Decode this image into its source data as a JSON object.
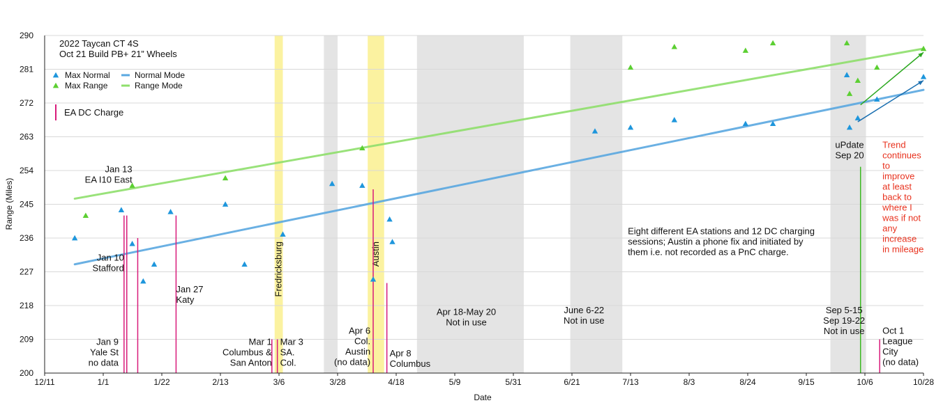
{
  "chart_data": {
    "type": "scatter",
    "title": "",
    "xlabel": "Date",
    "ylabel": "Range (Miles)",
    "x_tick_labels": [
      "12/11",
      "1/1",
      "1/22",
      "2/13",
      "3/6",
      "3/28",
      "4/18",
      "5/9",
      "5/31",
      "6/21",
      "7/13",
      "8/3",
      "8/24",
      "9/15",
      "10/6",
      "10/28"
    ],
    "y_ticks": [
      200,
      209,
      218,
      227,
      236,
      245,
      254,
      263,
      272,
      281,
      290
    ],
    "xlim": [
      "2021-12-11",
      "2022-10-28"
    ],
    "ylim": [
      200,
      290
    ],
    "grid": "horizontal",
    "legend_placement": "top-left",
    "title_lines": [
      "2022 Taycan CT 4S",
      "Oct 21 Build PB+ 21” Wheels"
    ],
    "series": [
      {
        "name": "Max Normal",
        "marker": "triangle",
        "color": "#1e96dc",
        "points": [
          [
            "2021-12-22",
            236
          ],
          [
            "2022-01-08",
            243.5
          ],
          [
            "2022-01-12",
            234.5
          ],
          [
            "2022-01-16",
            224.5
          ],
          [
            "2022-01-20",
            229
          ],
          [
            "2022-01-26",
            243
          ],
          [
            "2022-02-15",
            245
          ],
          [
            "2022-02-22",
            229
          ],
          [
            "2022-03-08",
            237
          ],
          [
            "2022-03-26",
            250.5
          ],
          [
            "2022-04-06",
            250
          ],
          [
            "2022-04-10",
            225
          ],
          [
            "2022-04-16",
            241
          ],
          [
            "2022-04-17",
            235
          ],
          [
            "2022-06-30",
            264.5
          ],
          [
            "2022-07-13",
            265.5
          ],
          [
            "2022-07-29",
            267.5
          ],
          [
            "2022-08-24",
            266.5
          ],
          [
            "2022-09-03",
            266.5
          ],
          [
            "2022-09-30",
            279.5
          ],
          [
            "2022-10-01",
            265.5
          ],
          [
            "2022-10-04",
            268
          ],
          [
            "2022-10-11",
            273
          ],
          [
            "2022-10-28",
            279
          ]
        ]
      },
      {
        "name": "Max Range",
        "marker": "triangle",
        "color": "#5ccf32",
        "points": [
          [
            "2021-12-26",
            242
          ],
          [
            "2022-01-12",
            250
          ],
          [
            "2022-02-15",
            252
          ],
          [
            "2022-04-06",
            260
          ],
          [
            "2022-07-13",
            281.5
          ],
          [
            "2022-07-29",
            287
          ],
          [
            "2022-08-24",
            286
          ],
          [
            "2022-09-03",
            288
          ],
          [
            "2022-09-30",
            288
          ],
          [
            "2022-10-01",
            274.5
          ],
          [
            "2022-10-04",
            278
          ],
          [
            "2022-10-11",
            281.5
          ],
          [
            "2022-10-28",
            286.5
          ]
        ]
      },
      {
        "name": "Normal Mode",
        "type": "line",
        "color": "#5aa8e0",
        "points": [
          [
            "2021-12-22",
            229
          ],
          [
            "2022-10-28",
            275.5
          ]
        ]
      },
      {
        "name": "Range Mode",
        "type": "line",
        "color": "#8fdf6c",
        "points": [
          [
            "2021-12-22",
            246.5
          ],
          [
            "2022-10-28",
            286.5
          ]
        ]
      }
    ],
    "legend": [
      {
        "name": "Max Normal",
        "marker": "triangle",
        "color": "#1e96dc"
      },
      {
        "name": "Normal Mode",
        "marker": "line",
        "color": "#5aa8e0"
      },
      {
        "name": "Max Range",
        "marker": "triangle",
        "color": "#5ccf32"
      },
      {
        "name": "Range Mode",
        "marker": "line",
        "color": "#8fdf6c"
      },
      {
        "name": "EA DC Charge",
        "marker": "vline",
        "color": "#d81b7a"
      }
    ],
    "shaded_periods": [
      {
        "start": "2022-03-05",
        "end": "2022-03-08",
        "color": "#fbf2a0",
        "label": "Fredricksburg"
      },
      {
        "start": "2022-03-23",
        "end": "2022-03-28",
        "color": "#e4e4e4",
        "label": ""
      },
      {
        "start": "2022-04-08",
        "end": "2022-04-14",
        "color": "#fbf2a0",
        "label": "Austin"
      },
      {
        "start": "2022-04-26",
        "end": "2022-06-04",
        "color": "#e4e4e4",
        "label": ""
      },
      {
        "start": "2022-06-21",
        "end": "2022-07-10",
        "color": "#e4e4e4",
        "label": ""
      },
      {
        "start": "2022-09-24",
        "end": "2022-10-07",
        "color": "#e4e4e4",
        "label": ""
      }
    ],
    "dc_charges": [
      {
        "date": "2022-01-09",
        "top": 242,
        "color": "#d81b7a"
      },
      {
        "date": "2022-01-10",
        "top": 242,
        "color": "#d81b7a"
      },
      {
        "date": "2022-01-14",
        "top": 236,
        "color": "#d81b7a"
      },
      {
        "date": "2022-01-28",
        "top": 242,
        "color": "#d81b7a"
      },
      {
        "date": "2022-03-04",
        "top": 209,
        "color": "#d81b7a"
      },
      {
        "date": "2022-03-06",
        "top": 209,
        "color": "#d81b7a"
      },
      {
        "date": "2022-04-10",
        "top": 249,
        "color": "#d81b7a"
      },
      {
        "date": "2022-04-15",
        "top": 224,
        "color": "#d81b7a"
      },
      {
        "date": "2022-10-05",
        "top": 255,
        "color": "#3ab820"
      },
      {
        "date": "2022-10-12",
        "top": 209,
        "color": "#d81b7a"
      }
    ],
    "arrows": [
      {
        "from": [
          "2022-10-05",
          271.5
        ],
        "to": [
          "2022-10-28",
          285.5
        ],
        "color": "#2ca820"
      },
      {
        "from": [
          "2022-10-04",
          267
        ],
        "to": [
          "2022-10-28",
          278
        ],
        "color": "#1a6fb0"
      }
    ],
    "annotations": [
      {
        "lines": [
          "Jan 13",
          "EA  I10 East"
        ],
        "at": [
          "2022-01-12",
          253.5
        ],
        "anchor": "end",
        "color": "#111"
      },
      {
        "lines": [
          "Jan 10",
          "Stafford"
        ],
        "at": [
          "2022-01-09",
          230
        ],
        "anchor": "end",
        "color": "#111"
      },
      {
        "lines": [
          "Jan 27",
          "Katy"
        ],
        "at": [
          "2022-01-28",
          221.5
        ],
        "anchor": "start",
        "color": "#111"
      },
      {
        "lines": [
          "Jan 9",
          "Yale St",
          "no data"
        ],
        "at": [
          "2022-01-07",
          207.5
        ],
        "anchor": "end",
        "color": "#111"
      },
      {
        "lines": [
          "Mar 1",
          "Columbus &",
          "San Anton"
        ],
        "at": [
          "2022-03-04",
          207.5
        ],
        "anchor": "end",
        "color": "#111"
      },
      {
        "lines": [
          "Mar 3",
          "SA.",
          "Col."
        ],
        "at": [
          "2022-03-07",
          207.5
        ],
        "anchor": "start",
        "color": "#111"
      },
      {
        "lines": [
          "Apr 6",
          "Col.",
          "Austin",
          "(no data)"
        ],
        "at": [
          "2022-04-09",
          210.5
        ],
        "anchor": "end",
        "color": "#111"
      },
      {
        "lines": [
          "Apr 8",
          "Columbus"
        ],
        "at": [
          "2022-04-16",
          204.5
        ],
        "anchor": "start",
        "color": "#111"
      },
      {
        "lines": [
          "Apr 18-May 20",
          "Not in use"
        ],
        "at": [
          "2022-05-14",
          215.5
        ],
        "anchor": "middle",
        "color": "#111"
      },
      {
        "lines": [
          "June 6-22",
          "Not in use"
        ],
        "at": [
          "2022-06-26",
          216
        ],
        "anchor": "middle",
        "color": "#111"
      },
      {
        "lines": [
          "Sep 5-15",
          "Sep 19-22",
          "Not in use"
        ],
        "at": [
          "2022-09-29",
          216
        ],
        "anchor": "middle",
        "color": "#111"
      },
      {
        "lines": [
          "Oct 1",
          "League",
          "City",
          "(no data)"
        ],
        "at": [
          "2022-10-13",
          210.5
        ],
        "anchor": "start",
        "color": "#111"
      },
      {
        "lines": [
          "uPdate",
          "Sep 20"
        ],
        "at": [
          "2022-10-01",
          260
        ],
        "anchor": "middle",
        "color": "#111"
      },
      {
        "lines": [
          "Trend",
          "continues",
          "to",
          "improve",
          "at least",
          "back to",
          "where I",
          "was if not",
          "any",
          "increase",
          "in mileage"
        ],
        "at": [
          "2022-10-13",
          260
        ],
        "anchor": "start",
        "color": "#e8321e"
      },
      {
        "lines": [
          "Eight different EA stations and 12 DC charging",
          "sessions;  Austin a phone fix and initiated by",
          "them i.e. not recorded as a PnC charge."
        ],
        "at": [
          "2022-07-12",
          237
        ],
        "anchor": "start",
        "color": "#111"
      }
    ]
  }
}
